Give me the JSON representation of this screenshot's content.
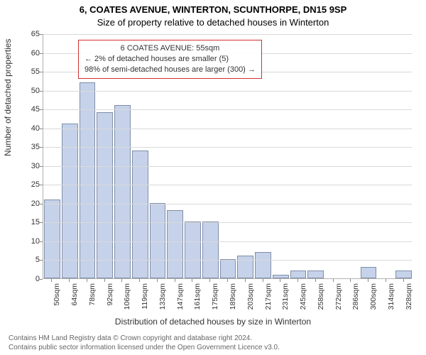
{
  "titles": {
    "line1": "6, COATES AVENUE, WINTERTON, SCUNTHORPE, DN15 9SP",
    "line2": "Size of property relative to detached houses in Winterton"
  },
  "chart": {
    "type": "bar",
    "y_axis": {
      "label": "Number of detached properties",
      "min": 0,
      "max": 65,
      "tick_step": 5,
      "grid_color": "#d9d9d9"
    },
    "x_axis": {
      "label": "Distribution of detached houses by size in Winterton",
      "tick_labels": [
        "50sqm",
        "64sqm",
        "78sqm",
        "92sqm",
        "106sqm",
        "119sqm",
        "133sqm",
        "147sqm",
        "161sqm",
        "175sqm",
        "189sqm",
        "203sqm",
        "217sqm",
        "231sqm",
        "245sqm",
        "258sqm",
        "272sqm",
        "286sqm",
        "300sqm",
        "314sqm",
        "328sqm"
      ]
    },
    "bars": {
      "values": [
        21,
        41,
        52,
        44,
        46,
        34,
        20,
        18,
        15,
        15,
        5,
        6,
        7,
        1,
        2,
        2,
        0,
        0,
        3,
        0,
        2
      ],
      "fill_color": "#c6d2ea",
      "border_color": "#808ea8"
    },
    "plot_background": "#ffffff"
  },
  "callout": {
    "line1": "6 COATES AVENUE: 55sqm",
    "line2": "← 2% of detached houses are smaller (5)",
    "line3": "98% of semi-detached houses are larger (300) →",
    "border_color": "#d03030"
  },
  "footer": {
    "line1": "Contains HM Land Registry data © Crown copyright and database right 2024.",
    "line2": "Contains public sector information licensed under the Open Government Licence v3.0."
  }
}
